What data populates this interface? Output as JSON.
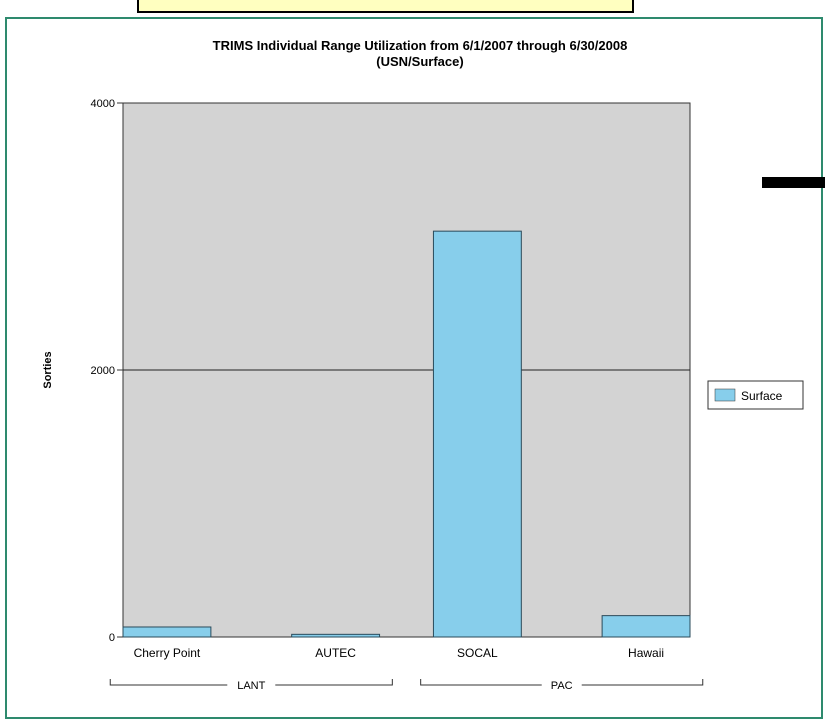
{
  "chart_data": {
    "type": "bar",
    "title": "TRIMS Individual Range Utilization from 6/1/2007 through 6/30/2008",
    "subtitle": "(USN/Surface)",
    "xlabel": "",
    "ylabel": "Sorties",
    "ylim": [
      0,
      4000
    ],
    "yticks": [
      "0",
      "2000",
      "4000"
    ],
    "categories": [
      "Cherry Point",
      "AUTEC",
      "SOCAL",
      "Hawaii"
    ],
    "groups": [
      {
        "label": "LANT",
        "categories": [
          "Cherry Point",
          "AUTEC"
        ]
      },
      {
        "label": "PAC",
        "categories": [
          "SOCAL",
          "Hawaii"
        ]
      }
    ],
    "series": [
      {
        "name": "Surface",
        "values": [
          75,
          20,
          3040,
          160
        ],
        "color": "#87ceeb"
      }
    ],
    "plot_background": "#d3d3d3",
    "grid": "horizontal",
    "legend_position": "right"
  }
}
